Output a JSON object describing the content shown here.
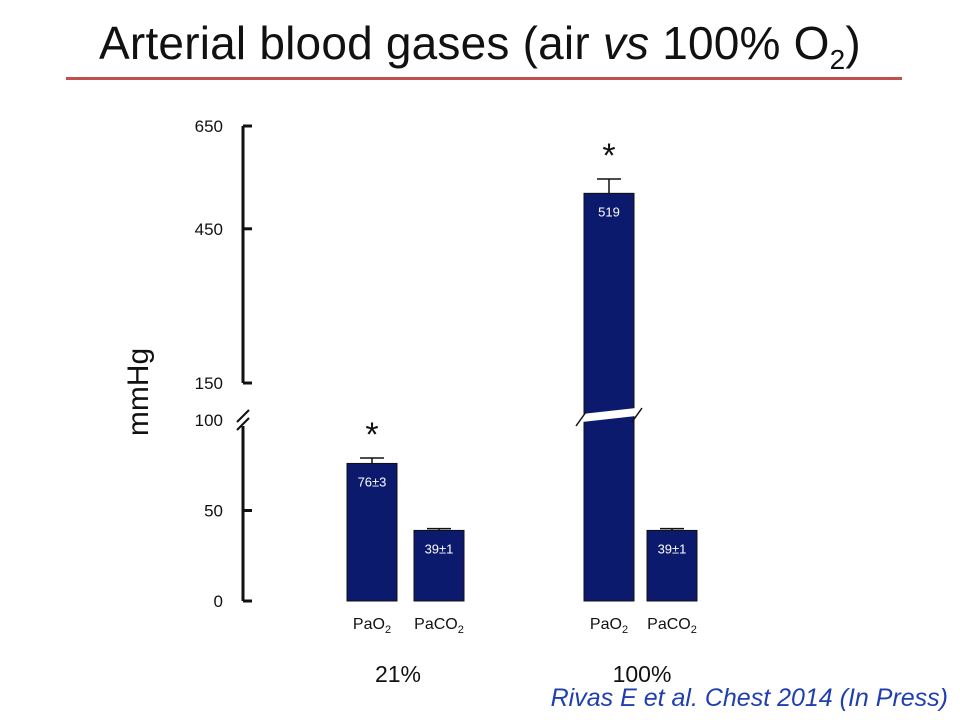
{
  "title": {
    "prefix": "Arterial blood gases (air ",
    "vs": "vs",
    "middle": " 100% O",
    "sub": "2",
    "suffix": ")"
  },
  "citation": "Rivas E et al. Chest 2014 (In Press)",
  "chart_data": {
    "type": "bar",
    "ylabel": "mmHg",
    "axis_break": [
      100,
      150
    ],
    "y_ticks": [
      0,
      50,
      100,
      150,
      450,
      650
    ],
    "ylim": [
      0,
      650
    ],
    "colors": {
      "bar": "#0c1a6e",
      "title_rule": "#c0504d",
      "citation": "#1f3fae"
    },
    "groups": [
      {
        "label": "21%",
        "bars": [
          {
            "name": "PaO",
            "sub": "2",
            "value": 76,
            "error": 3,
            "label": "76±3",
            "significant": true
          },
          {
            "name": "PaCO",
            "sub": "2",
            "value": 39,
            "error": 1,
            "label": "39±1",
            "significant": false
          }
        ]
      },
      {
        "label": "100%",
        "bars": [
          {
            "name": "PaO",
            "sub": "2",
            "value": 519,
            "error": 28,
            "label": "519",
            "significant": true
          },
          {
            "name": "PaCO",
            "sub": "2",
            "value": 39,
            "error": 1,
            "label": "39±1",
            "significant": false
          }
        ]
      }
    ],
    "significance_marker": "*"
  }
}
